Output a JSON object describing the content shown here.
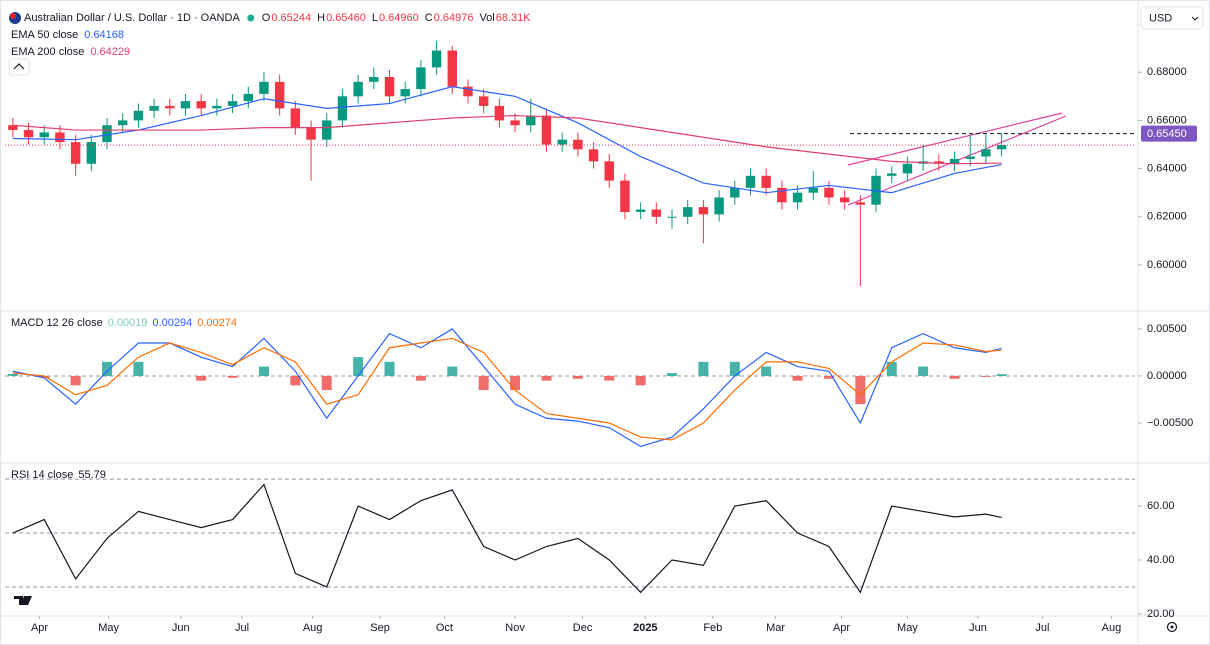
{
  "toolbar": {
    "currency": "USD"
  },
  "chart_data": [
    {
      "type": "candlestick",
      "title": "Australian Dollar / U.S. Dollar · 1D · OANDA",
      "info": [
        {
          "label": "O",
          "value": "0.65244"
        },
        {
          "label": "H",
          "value": "0.65460"
        },
        {
          "label": "L",
          "value": "0.64960"
        },
        {
          "label": "C",
          "value": "0.64976"
        },
        {
          "label": "Vol",
          "value": "68.31K"
        }
      ],
      "x": [
        0,
        1,
        2,
        3,
        4,
        5,
        6,
        7,
        8,
        9,
        10,
        11,
        12,
        13,
        14,
        15,
        16,
        17,
        18,
        19,
        20,
        21,
        22,
        23,
        24,
        25,
        26,
        27,
        28,
        29,
        30,
        31,
        32,
        33,
        34,
        35,
        36,
        37,
        38,
        39,
        40,
        41,
        42,
        43,
        44,
        45,
        46,
        47,
        48,
        49,
        50,
        51,
        52,
        53,
        54,
        55,
        56,
        57,
        58,
        59,
        60,
        61,
        62,
        63
      ],
      "open": [
        0.658,
        0.656,
        0.653,
        0.655,
        0.651,
        0.642,
        0.651,
        0.658,
        0.66,
        0.664,
        0.666,
        0.665,
        0.668,
        0.665,
        0.666,
        0.668,
        0.671,
        0.676,
        0.665,
        0.657,
        0.652,
        0.66,
        0.67,
        0.676,
        0.678,
        0.67,
        0.673,
        0.682,
        0.689,
        0.674,
        0.67,
        0.666,
        0.66,
        0.658,
        0.662,
        0.65,
        0.652,
        0.648,
        0.643,
        0.635,
        0.622,
        0.623,
        0.62,
        0.62,
        0.624,
        0.621,
        0.628,
        0.632,
        0.637,
        0.632,
        0.626,
        0.63,
        0.632,
        0.628,
        0.626,
        0.625,
        0.637,
        0.638,
        0.642,
        0.643,
        0.642,
        0.644,
        0.645,
        0.648
      ],
      "high": [
        0.661,
        0.659,
        0.658,
        0.658,
        0.654,
        0.654,
        0.661,
        0.663,
        0.667,
        0.669,
        0.669,
        0.671,
        0.671,
        0.669,
        0.671,
        0.674,
        0.68,
        0.679,
        0.668,
        0.66,
        0.663,
        0.673,
        0.679,
        0.682,
        0.681,
        0.676,
        0.685,
        0.693,
        0.691,
        0.677,
        0.673,
        0.669,
        0.663,
        0.669,
        0.665,
        0.655,
        0.655,
        0.651,
        0.646,
        0.638,
        0.626,
        0.626,
        0.623,
        0.627,
        0.627,
        0.631,
        0.635,
        0.64,
        0.64,
        0.635,
        0.633,
        0.639,
        0.635,
        0.631,
        0.629,
        0.64,
        0.641,
        0.645,
        0.65,
        0.646,
        0.647,
        0.654,
        0.6546,
        0.6546
      ],
      "low": [
        0.653,
        0.65,
        0.65,
        0.648,
        0.637,
        0.639,
        0.648,
        0.655,
        0.657,
        0.661,
        0.662,
        0.662,
        0.662,
        0.662,
        0.663,
        0.665,
        0.668,
        0.662,
        0.654,
        0.635,
        0.649,
        0.657,
        0.667,
        0.673,
        0.667,
        0.667,
        0.67,
        0.679,
        0.671,
        0.667,
        0.663,
        0.657,
        0.655,
        0.655,
        0.647,
        0.647,
        0.645,
        0.64,
        0.632,
        0.619,
        0.619,
        0.617,
        0.615,
        0.617,
        0.609,
        0.618,
        0.625,
        0.629,
        0.629,
        0.623,
        0.623,
        0.627,
        0.625,
        0.623,
        0.5913,
        0.622,
        0.634,
        0.635,
        0.639,
        0.639,
        0.639,
        0.641,
        0.642,
        0.645
      ],
      "close": [
        0.656,
        0.653,
        0.655,
        0.651,
        0.642,
        0.651,
        0.658,
        0.66,
        0.664,
        0.666,
        0.665,
        0.668,
        0.665,
        0.666,
        0.668,
        0.671,
        0.676,
        0.665,
        0.657,
        0.652,
        0.66,
        0.67,
        0.676,
        0.678,
        0.67,
        0.673,
        0.682,
        0.689,
        0.674,
        0.67,
        0.666,
        0.66,
        0.658,
        0.662,
        0.65,
        0.652,
        0.648,
        0.643,
        0.635,
        0.622,
        0.623,
        0.62,
        0.62,
        0.624,
        0.621,
        0.628,
        0.632,
        0.637,
        0.632,
        0.626,
        0.63,
        0.632,
        0.628,
        0.626,
        0.625,
        0.637,
        0.638,
        0.642,
        0.643,
        0.642,
        0.644,
        0.645,
        0.648,
        0.64976
      ],
      "up_color": "#089981",
      "down_color": "#f23645",
      "series": [
        {
          "name": "EMA 50 close",
          "color": "#2962ff",
          "last_label": "0.64168",
          "x": [
            0,
            4,
            8,
            12,
            16,
            20,
            24,
            28,
            32,
            36,
            40,
            44,
            48,
            52,
            56,
            60,
            63
          ],
          "values": [
            0.6525,
            0.652,
            0.656,
            0.662,
            0.669,
            0.665,
            0.667,
            0.674,
            0.67,
            0.659,
            0.645,
            0.634,
            0.63,
            0.633,
            0.63,
            0.638,
            0.64168
          ]
        },
        {
          "name": "EMA 200 close",
          "color": "#e0406e",
          "last_label": "0.64229",
          "x": [
            0,
            4,
            8,
            12,
            16,
            20,
            24,
            28,
            32,
            36,
            40,
            44,
            48,
            52,
            56,
            60,
            63
          ],
          "values": [
            0.658,
            0.656,
            0.656,
            0.656,
            0.657,
            0.657,
            0.659,
            0.661,
            0.662,
            0.661,
            0.657,
            0.653,
            0.649,
            0.646,
            0.643,
            0.642,
            0.64229
          ]
        }
      ],
      "price_line": {
        "value": 0.6545,
        "label": "0.65450",
        "color": "#7e57c2"
      },
      "xlim": [
        -0.5,
        71.5
      ],
      "ylim": [
        0.5813,
        0.7079
      ],
      "yticks": [
        {
          "value": 0.68,
          "label": "0.68000"
        },
        {
          "value": 0.66,
          "label": "0.66000"
        },
        {
          "value": 0.64,
          "label": "0.64000"
        },
        {
          "value": 0.62,
          "label": "0.62000"
        },
        {
          "value": 0.6,
          "label": "0.60000"
        }
      ]
    },
    {
      "type": "line",
      "title": "MACD 12 26 close",
      "x": [
        0,
        2,
        4,
        6,
        8,
        10,
        12,
        14,
        16,
        18,
        20,
        22,
        24,
        26,
        28,
        30,
        32,
        34,
        36,
        38,
        40,
        42,
        44,
        46,
        48,
        50,
        52,
        54,
        56,
        58,
        60,
        62,
        63
      ],
      "series": [
        {
          "type": "bar",
          "positive_color": "#26a69a",
          "negative_color": "#ef5350",
          "color": "#80cbc4",
          "last_label": "0.00019",
          "values": [
            0.0002,
            -0.0002,
            -0.001,
            0.0015,
            0.0015,
            0.0,
            -0.0005,
            -0.0002,
            0.001,
            -0.001,
            -0.0015,
            0.002,
            0.0015,
            -0.0005,
            0.001,
            -0.0015,
            -0.0015,
            -0.0005,
            -0.0003,
            -0.0005,
            -0.001,
            0.0003,
            0.0015,
            0.0015,
            0.001,
            -0.0005,
            -0.0003,
            -0.003,
            0.0015,
            0.001,
            -0.0003,
            -0.0001,
            0.00019
          ]
        },
        {
          "color": "#2962ff",
          "last_label": "0.00294",
          "values": [
            0.0005,
            -0.0002,
            -0.003,
            0.0005,
            0.0035,
            0.0035,
            0.002,
            0.001,
            0.004,
            0.0005,
            -0.0045,
            0.0,
            0.0045,
            0.003,
            0.005,
            0.001,
            -0.003,
            -0.0045,
            -0.0048,
            -0.0055,
            -0.0075,
            -0.0065,
            -0.0035,
            0.0,
            0.0025,
            0.001,
            0.0005,
            -0.005,
            0.003,
            0.0045,
            0.003,
            0.0025,
            0.00294
          ]
        },
        {
          "color": "#ff6d00",
          "last_label": "0.00274",
          "values": [
            0.0003,
            0.0,
            -0.002,
            -0.001,
            0.002,
            0.0035,
            0.0025,
            0.0012,
            0.003,
            0.0015,
            -0.003,
            -0.002,
            0.003,
            0.0035,
            0.004,
            0.0025,
            -0.0015,
            -0.004,
            -0.0045,
            -0.005,
            -0.0065,
            -0.0068,
            -0.005,
            -0.0015,
            0.0015,
            0.0015,
            0.0008,
            -0.002,
            0.0015,
            0.0035,
            0.0033,
            0.0026,
            0.00274
          ]
        }
      ],
      "levels": [
        0
      ],
      "xlim": [
        -0.5,
        71.5
      ],
      "ylim": [
        -0.00915,
        0.0068
      ],
      "yticks": [
        {
          "value": 0.005,
          "label": "0.00500"
        },
        {
          "value": 0,
          "label": "0.00000"
        },
        {
          "value": -0.005,
          "label": "−0.00500"
        }
      ]
    },
    {
      "type": "line",
      "title": "RSI 14 close",
      "x": [
        0,
        2,
        4,
        6,
        8,
        10,
        12,
        14,
        16,
        18,
        20,
        22,
        24,
        26,
        28,
        30,
        32,
        34,
        36,
        38,
        40,
        42,
        44,
        46,
        48,
        50,
        52,
        54,
        56,
        58,
        60,
        62,
        63
      ],
      "series": [
        {
          "color": "#131722",
          "last_label": "55.79",
          "values": [
            50,
            55,
            33,
            48,
            58,
            55,
            52,
            55,
            68,
            35,
            30,
            60,
            55,
            62,
            66,
            45,
            40,
            45,
            48,
            40,
            28,
            40,
            38,
            60,
            62,
            50,
            45,
            28,
            60,
            58,
            56,
            57,
            55.79
          ]
        }
      ],
      "levels": [
        70,
        50,
        30
      ],
      "xlim": [
        -0.5,
        71.5
      ],
      "ylim": [
        19.6,
        75.6
      ],
      "yticks": [
        {
          "value": 60,
          "label": "60.00"
        },
        {
          "value": 40,
          "label": "40.00"
        },
        {
          "value": 20,
          "label": "20.00"
        }
      ],
      "xticks": [
        {
          "value": 1.7,
          "label": "Apr"
        },
        {
          "value": 6.1,
          "label": "May"
        },
        {
          "value": 10.7,
          "label": "Jun"
        },
        {
          "value": 14.6,
          "label": "Jul"
        },
        {
          "value": 19.1,
          "label": "Aug"
        },
        {
          "value": 23.4,
          "label": "Sep"
        },
        {
          "value": 27.5,
          "label": "Oct"
        },
        {
          "value": 32.0,
          "label": "Nov"
        },
        {
          "value": 36.3,
          "label": "Dec"
        },
        {
          "value": 40.3,
          "label": "2025"
        },
        {
          "value": 44.6,
          "label": "Feb"
        },
        {
          "value": 48.6,
          "label": "Mar"
        },
        {
          "value": 52.8,
          "label": "Apr"
        },
        {
          "value": 57.0,
          "label": "May"
        },
        {
          "value": 61.5,
          "label": "Jun"
        },
        {
          "value": 65.6,
          "label": "Jul"
        },
        {
          "value": 70.0,
          "label": "Aug"
        }
      ]
    }
  ]
}
